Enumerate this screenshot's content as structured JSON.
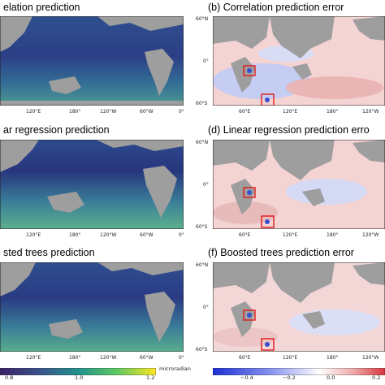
{
  "panels": {
    "a": {
      "title": "elation prediction"
    },
    "b": {
      "letter": "(b)",
      "title": "Correlation prediction error"
    },
    "c": {
      "title": "ar regression prediction"
    },
    "d": {
      "letter": "(d)",
      "title": "Linear regression prediction erro"
    },
    "e": {
      "title": "sted trees prediction"
    },
    "f": {
      "letter": "(f)",
      "title": "Boosted trees prediction error"
    }
  },
  "left_xticks": [
    "120°E",
    "180°",
    "120°W",
    "60°W",
    "0°"
  ],
  "right_xticks": [
    "60°E",
    "120°E",
    "180°",
    "120°W"
  ],
  "right_yticks": [
    "60°N",
    "0°",
    "60°S"
  ],
  "colorbar_left": {
    "ticks": [
      "0.8",
      "1.0",
      "1.2"
    ],
    "unit": "microradian"
  },
  "colorbar_right": {
    "ticks": [
      "−0.4",
      "−0.2",
      "0.0",
      "0.2"
    ]
  },
  "colors": {
    "land": "#9e9e9e",
    "ocean_low": "#2b3e8a",
    "ocean_mid": "#3f7e9a",
    "ocean_high": "#5fb38a",
    "error_pos": "#f3c7c7",
    "error_neg": "#5b6ee0",
    "highlight_box": "#e01818"
  }
}
